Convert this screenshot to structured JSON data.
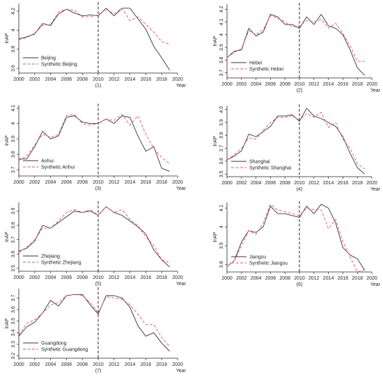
{
  "colors": {
    "actual": "#333333",
    "synthetic": "#e8505b",
    "marker": "#222222"
  },
  "chart_data": [
    {
      "type": "line",
      "caption": "(1)",
      "xlabel": "Year",
      "ylabel": "lnAP",
      "xlim": [
        2000,
        2020
      ],
      "ylim": [
        3.55,
        4.28
      ],
      "xticks": [
        "2000",
        "2002",
        "2004",
        "2006",
        "2008",
        "2010",
        "2012",
        "2014",
        "2016",
        "2018",
        "2020"
      ],
      "yticks": [
        "3.6",
        "3.8",
        "4",
        "4.2"
      ],
      "ytick_values": [
        3.6,
        3.8,
        4.0,
        4.2
      ],
      "vline": 2010,
      "legend_position": "bottom-left",
      "grid": false,
      "series": [
        {
          "name": "Beijing",
          "style": "solid",
          "x": [
            2000,
            2001,
            2002,
            2003,
            2004,
            2005,
            2006,
            2007,
            2008,
            2009,
            2010,
            2011,
            2012,
            2013,
            2014,
            2015,
            2016,
            2017,
            2018,
            2019
          ],
          "y": [
            3.91,
            3.93,
            3.96,
            4.07,
            4.05,
            4.17,
            4.22,
            4.18,
            4.15,
            4.16,
            4.15,
            4.23,
            4.15,
            4.23,
            4.23,
            4.12,
            4.01,
            3.83,
            3.71,
            3.58
          ]
        },
        {
          "name": "Synthetic Beijing",
          "style": "dashed",
          "x": [
            2000,
            2001,
            2002,
            2003,
            2004,
            2005,
            2006,
            2007,
            2008,
            2009,
            2010,
            2011,
            2012,
            2013,
            2014,
            2015,
            2016,
            2017,
            2018,
            2019
          ],
          "y": [
            3.9,
            3.92,
            3.97,
            4.05,
            4.06,
            4.19,
            4.22,
            4.21,
            4.14,
            4.14,
            4.16,
            4.22,
            4.17,
            4.23,
            4.1,
            4.14,
            4.06,
            3.98,
            3.88,
            3.85
          ]
        }
      ]
    },
    {
      "type": "line",
      "caption": "(2)",
      "xlabel": "Year",
      "ylabel": "lnAP",
      "xlim": [
        2000,
        2020
      ],
      "ylim": [
        3.66,
        4.24
      ],
      "xticks": [
        "2000",
        "2002",
        "2004",
        "2006",
        "2008",
        "2010",
        "2012",
        "2014",
        "2016",
        "2018",
        "2020"
      ],
      "yticks": [
        "3.7",
        "3.8",
        "3.9",
        "4",
        "4.1",
        "4.2"
      ],
      "ytick_values": [
        3.7,
        3.8,
        3.9,
        4.0,
        4.1,
        4.2
      ],
      "vline": 2010,
      "legend_position": "bottom-left",
      "grid": false,
      "series": [
        {
          "name": "Hebei",
          "style": "solid",
          "x": [
            2000,
            2001,
            2002,
            2003,
            2004,
            2005,
            2006,
            2007,
            2008,
            2009,
            2010,
            2011,
            2012,
            2013,
            2014,
            2015,
            2016,
            2017,
            2018,
            2019
          ],
          "y": [
            3.82,
            3.87,
            3.88,
            4.05,
            3.99,
            4.02,
            4.16,
            4.14,
            4.08,
            4.08,
            4.05,
            4.14,
            4.08,
            4.16,
            4.07,
            4.05,
            4.0,
            3.88,
            3.74,
            3.68
          ]
        },
        {
          "name": "Synthetic Hebei",
          "style": "dashed",
          "x": [
            2000,
            2001,
            2002,
            2003,
            2004,
            2005,
            2006,
            2007,
            2008,
            2009,
            2010,
            2011,
            2012,
            2013,
            2014,
            2015,
            2016,
            2017,
            2018,
            2019
          ],
          "y": [
            3.82,
            3.86,
            3.89,
            4.03,
            4.0,
            4.04,
            4.15,
            4.13,
            4.1,
            4.06,
            4.07,
            4.11,
            4.1,
            4.12,
            4.05,
            4.09,
            4.01,
            3.91,
            3.79,
            3.79
          ]
        }
      ]
    },
    {
      "type": "line",
      "caption": "(3)",
      "xlabel": "Year",
      "ylabel": "lnAP",
      "xlim": [
        2000,
        2020
      ],
      "ylim": [
        3.66,
        4.12
      ],
      "xticks": [
        "2000",
        "2002",
        "2004",
        "2006",
        "2008",
        "2010",
        "2012",
        "2014",
        "2016",
        "2018",
        "2020"
      ],
      "yticks": [
        "3.7",
        "3.8",
        "3.9",
        "4",
        "4.1"
      ],
      "ytick_values": [
        3.7,
        3.8,
        3.9,
        4.0,
        4.1
      ],
      "vline": 2010,
      "legend_position": "bottom-left",
      "grid": false,
      "series": [
        {
          "name": "Anhui",
          "style": "solid",
          "x": [
            2000,
            2001,
            2002,
            2003,
            2004,
            2005,
            2006,
            2007,
            2008,
            2009,
            2010,
            2011,
            2012,
            2013,
            2014,
            2015,
            2016,
            2017,
            2018,
            2019
          ],
          "y": [
            3.77,
            3.77,
            3.85,
            3.95,
            3.9,
            3.92,
            4.04,
            4.05,
            4.01,
            4.0,
            4.0,
            4.03,
            4.0,
            4.05,
            4.04,
            3.92,
            3.82,
            3.85,
            3.71,
            3.69
          ]
        },
        {
          "name": "Synthetic Anhui",
          "style": "dashed",
          "x": [
            2000,
            2001,
            2002,
            2003,
            2004,
            2005,
            2006,
            2007,
            2008,
            2009,
            2010,
            2011,
            2012,
            2013,
            2014,
            2015,
            2016,
            2017,
            2018,
            2019
          ],
          "y": [
            3.76,
            3.79,
            3.86,
            3.93,
            3.91,
            3.93,
            4.05,
            4.06,
            4.0,
            3.99,
            4.0,
            4.03,
            4.02,
            4.06,
            3.99,
            4.05,
            3.93,
            3.84,
            3.78,
            3.74
          ]
        }
      ]
    },
    {
      "type": "line",
      "caption": "(4)",
      "xlabel": "Year",
      "ylabel": "lnAP",
      "xlim": [
        2000,
        2020
      ],
      "ylim": [
        3.48,
        4.03
      ],
      "xticks": [
        "2000",
        "2002",
        "2004",
        "2006",
        "2008",
        "2010",
        "2012",
        "2014",
        "2016",
        "2018",
        "2020"
      ],
      "yticks": [
        "3.5",
        "3.6",
        "3.7",
        "3.8",
        "3.9",
        "4.0"
      ],
      "ytick_values": [
        3.5,
        3.6,
        3.7,
        3.8,
        3.9,
        4.0
      ],
      "vline": 2010,
      "legend_position": "bottom-left",
      "grid": false,
      "series": [
        {
          "name": "Shanghai",
          "style": "solid",
          "x": [
            2000,
            2001,
            2002,
            2003,
            2004,
            2005,
            2006,
            2007,
            2008,
            2009,
            2010,
            2011,
            2012,
            2013,
            2014,
            2015,
            2016,
            2017,
            2018,
            2019
          ],
          "y": [
            3.61,
            3.64,
            3.68,
            3.81,
            3.79,
            3.83,
            3.87,
            3.95,
            3.95,
            3.96,
            3.91,
            4.01,
            3.95,
            3.93,
            3.9,
            3.87,
            3.79,
            3.66,
            3.55,
            3.5
          ]
        },
        {
          "name": "Synthetic Shanghai",
          "style": "dashed",
          "x": [
            2000,
            2001,
            2002,
            2003,
            2004,
            2005,
            2006,
            2007,
            2008,
            2009,
            2010,
            2011,
            2012,
            2013,
            2014,
            2015,
            2016,
            2017,
            2018,
            2019
          ],
          "y": [
            3.61,
            3.65,
            3.7,
            3.78,
            3.77,
            3.84,
            3.9,
            3.94,
            3.94,
            3.95,
            3.92,
            3.97,
            3.94,
            3.98,
            3.86,
            3.9,
            3.77,
            3.7,
            3.58,
            3.54
          ]
        }
      ]
    },
    {
      "type": "line",
      "caption": "(5)",
      "xlabel": "Year",
      "ylabel": "lnAP",
      "xlim": [
        2000,
        2020
      ],
      "ylim": [
        3.48,
        3.96
      ],
      "xticks": [
        "2000",
        "2002",
        "2004",
        "2006",
        "2008",
        "2010",
        "2012",
        "2014",
        "2016",
        "2018",
        "2020"
      ],
      "yticks": [
        "3.5",
        "3.6",
        "3.7",
        "3.8",
        "3.9"
      ],
      "ytick_values": [
        3.5,
        3.6,
        3.7,
        3.8,
        3.9
      ],
      "vline": 2010,
      "legend_position": "bottom-left",
      "grid": false,
      "series": [
        {
          "name": "Zhejiang",
          "style": "solid",
          "x": [
            2000,
            2001,
            2002,
            2003,
            2004,
            2005,
            2006,
            2007,
            2008,
            2009,
            2010,
            2011,
            2012,
            2013,
            2014,
            2015,
            2016,
            2017,
            2018,
            2019
          ],
          "y": [
            3.62,
            3.64,
            3.69,
            3.8,
            3.78,
            3.82,
            3.86,
            3.9,
            3.89,
            3.9,
            3.87,
            3.93,
            3.89,
            3.87,
            3.83,
            3.79,
            3.74,
            3.63,
            3.56,
            3.51
          ]
        },
        {
          "name": "Synthetic Zhejiang",
          "style": "dashed",
          "x": [
            2000,
            2001,
            2002,
            2003,
            2004,
            2005,
            2006,
            2007,
            2008,
            2009,
            2010,
            2011,
            2012,
            2013,
            2014,
            2015,
            2016,
            2017,
            2018,
            2019
          ],
          "y": [
            3.61,
            3.65,
            3.7,
            3.78,
            3.78,
            3.83,
            3.89,
            3.91,
            3.89,
            3.91,
            3.87,
            3.93,
            3.89,
            3.91,
            3.84,
            3.8,
            3.72,
            3.66,
            3.56,
            3.54
          ]
        }
      ]
    },
    {
      "type": "line",
      "caption": "(6)",
      "xlabel": "Year",
      "ylabel": "lnAP",
      "xlim": [
        2000,
        2020
      ],
      "ylim": [
        3.76,
        4.13
      ],
      "xticks": [
        "2000",
        "2002",
        "2004",
        "2006",
        "2008",
        "2010",
        "2012",
        "2014",
        "2016",
        "2018",
        "2020"
      ],
      "yticks": [
        "3.8",
        "3.9",
        "4",
        "4.1"
      ],
      "ytick_values": [
        3.8,
        3.9,
        4.0,
        4.1
      ],
      "vline": 2010,
      "legend_position": "bottom-left",
      "grid": false,
      "series": [
        {
          "name": "Jiangsu",
          "style": "solid",
          "x": [
            2000,
            2001,
            2002,
            2003,
            2004,
            2005,
            2006,
            2007,
            2008,
            2009,
            2010,
            2011,
            2012,
            2013,
            2014,
            2015,
            2016,
            2017,
            2018,
            2019
          ],
          "y": [
            3.79,
            3.82,
            3.92,
            3.98,
            3.97,
            4.0,
            4.11,
            4.07,
            4.07,
            4.06,
            4.05,
            4.11,
            4.07,
            4.12,
            4.1,
            4.02,
            3.89,
            3.85,
            3.83,
            3.77
          ]
        },
        {
          "name": "Synthetic Jiangsu",
          "style": "dashed",
          "x": [
            2000,
            2001,
            2002,
            2003,
            2004,
            2005,
            2006,
            2007,
            2008,
            2009,
            2010,
            2011,
            2012,
            2013,
            2014,
            2015,
            2016,
            2017,
            2018,
            2019
          ],
          "y": [
            3.79,
            3.82,
            3.9,
            3.98,
            3.96,
            4.02,
            4.12,
            4.09,
            4.08,
            4.07,
            4.06,
            4.1,
            4.09,
            4.09,
            3.99,
            4.04,
            3.92,
            3.84,
            3.76,
            3.77
          ]
        }
      ]
    },
    {
      "type": "line",
      "caption": "(7)",
      "xlabel": "Year",
      "ylabel": "lnAP",
      "xlim": [
        2000,
        2020
      ],
      "ylim": [
        3.18,
        3.78
      ],
      "xticks": [
        "2000",
        "2002",
        "2004",
        "2006",
        "2008",
        "2010",
        "2012",
        "2014",
        "2016",
        "2018",
        "2020"
      ],
      "yticks": [
        "3.2",
        "3.3",
        "3.4",
        "3.5",
        "3.6",
        "3.7"
      ],
      "ytick_values": [
        3.2,
        3.3,
        3.4,
        3.5,
        3.6,
        3.7
      ],
      "vline": 2010,
      "legend_position": "bottom-left",
      "grid": false,
      "series": [
        {
          "name": "Guangdong",
          "style": "solid",
          "x": [
            2000,
            2001,
            2002,
            2003,
            2004,
            2005,
            2006,
            2007,
            2008,
            2009,
            2010,
            2011,
            2012,
            2013,
            2014,
            2015,
            2016,
            2017,
            2018,
            2019
          ],
          "y": [
            3.37,
            3.45,
            3.49,
            3.57,
            3.68,
            3.63,
            3.72,
            3.73,
            3.73,
            3.64,
            3.56,
            3.72,
            3.72,
            3.7,
            3.62,
            3.46,
            3.37,
            3.4,
            3.31,
            3.24
          ]
        },
        {
          "name": "Synthetic Guangdong",
          "style": "dashed",
          "x": [
            2000,
            2001,
            2002,
            2003,
            2004,
            2005,
            2006,
            2007,
            2008,
            2009,
            2010,
            2011,
            2012,
            2013,
            2014,
            2015,
            2016,
            2017,
            2018,
            2019
          ],
          "y": [
            3.38,
            3.48,
            3.51,
            3.57,
            3.64,
            3.66,
            3.72,
            3.73,
            3.72,
            3.66,
            3.57,
            3.71,
            3.7,
            3.69,
            3.64,
            3.56,
            3.47,
            3.47,
            3.36,
            3.28
          ]
        }
      ]
    }
  ]
}
